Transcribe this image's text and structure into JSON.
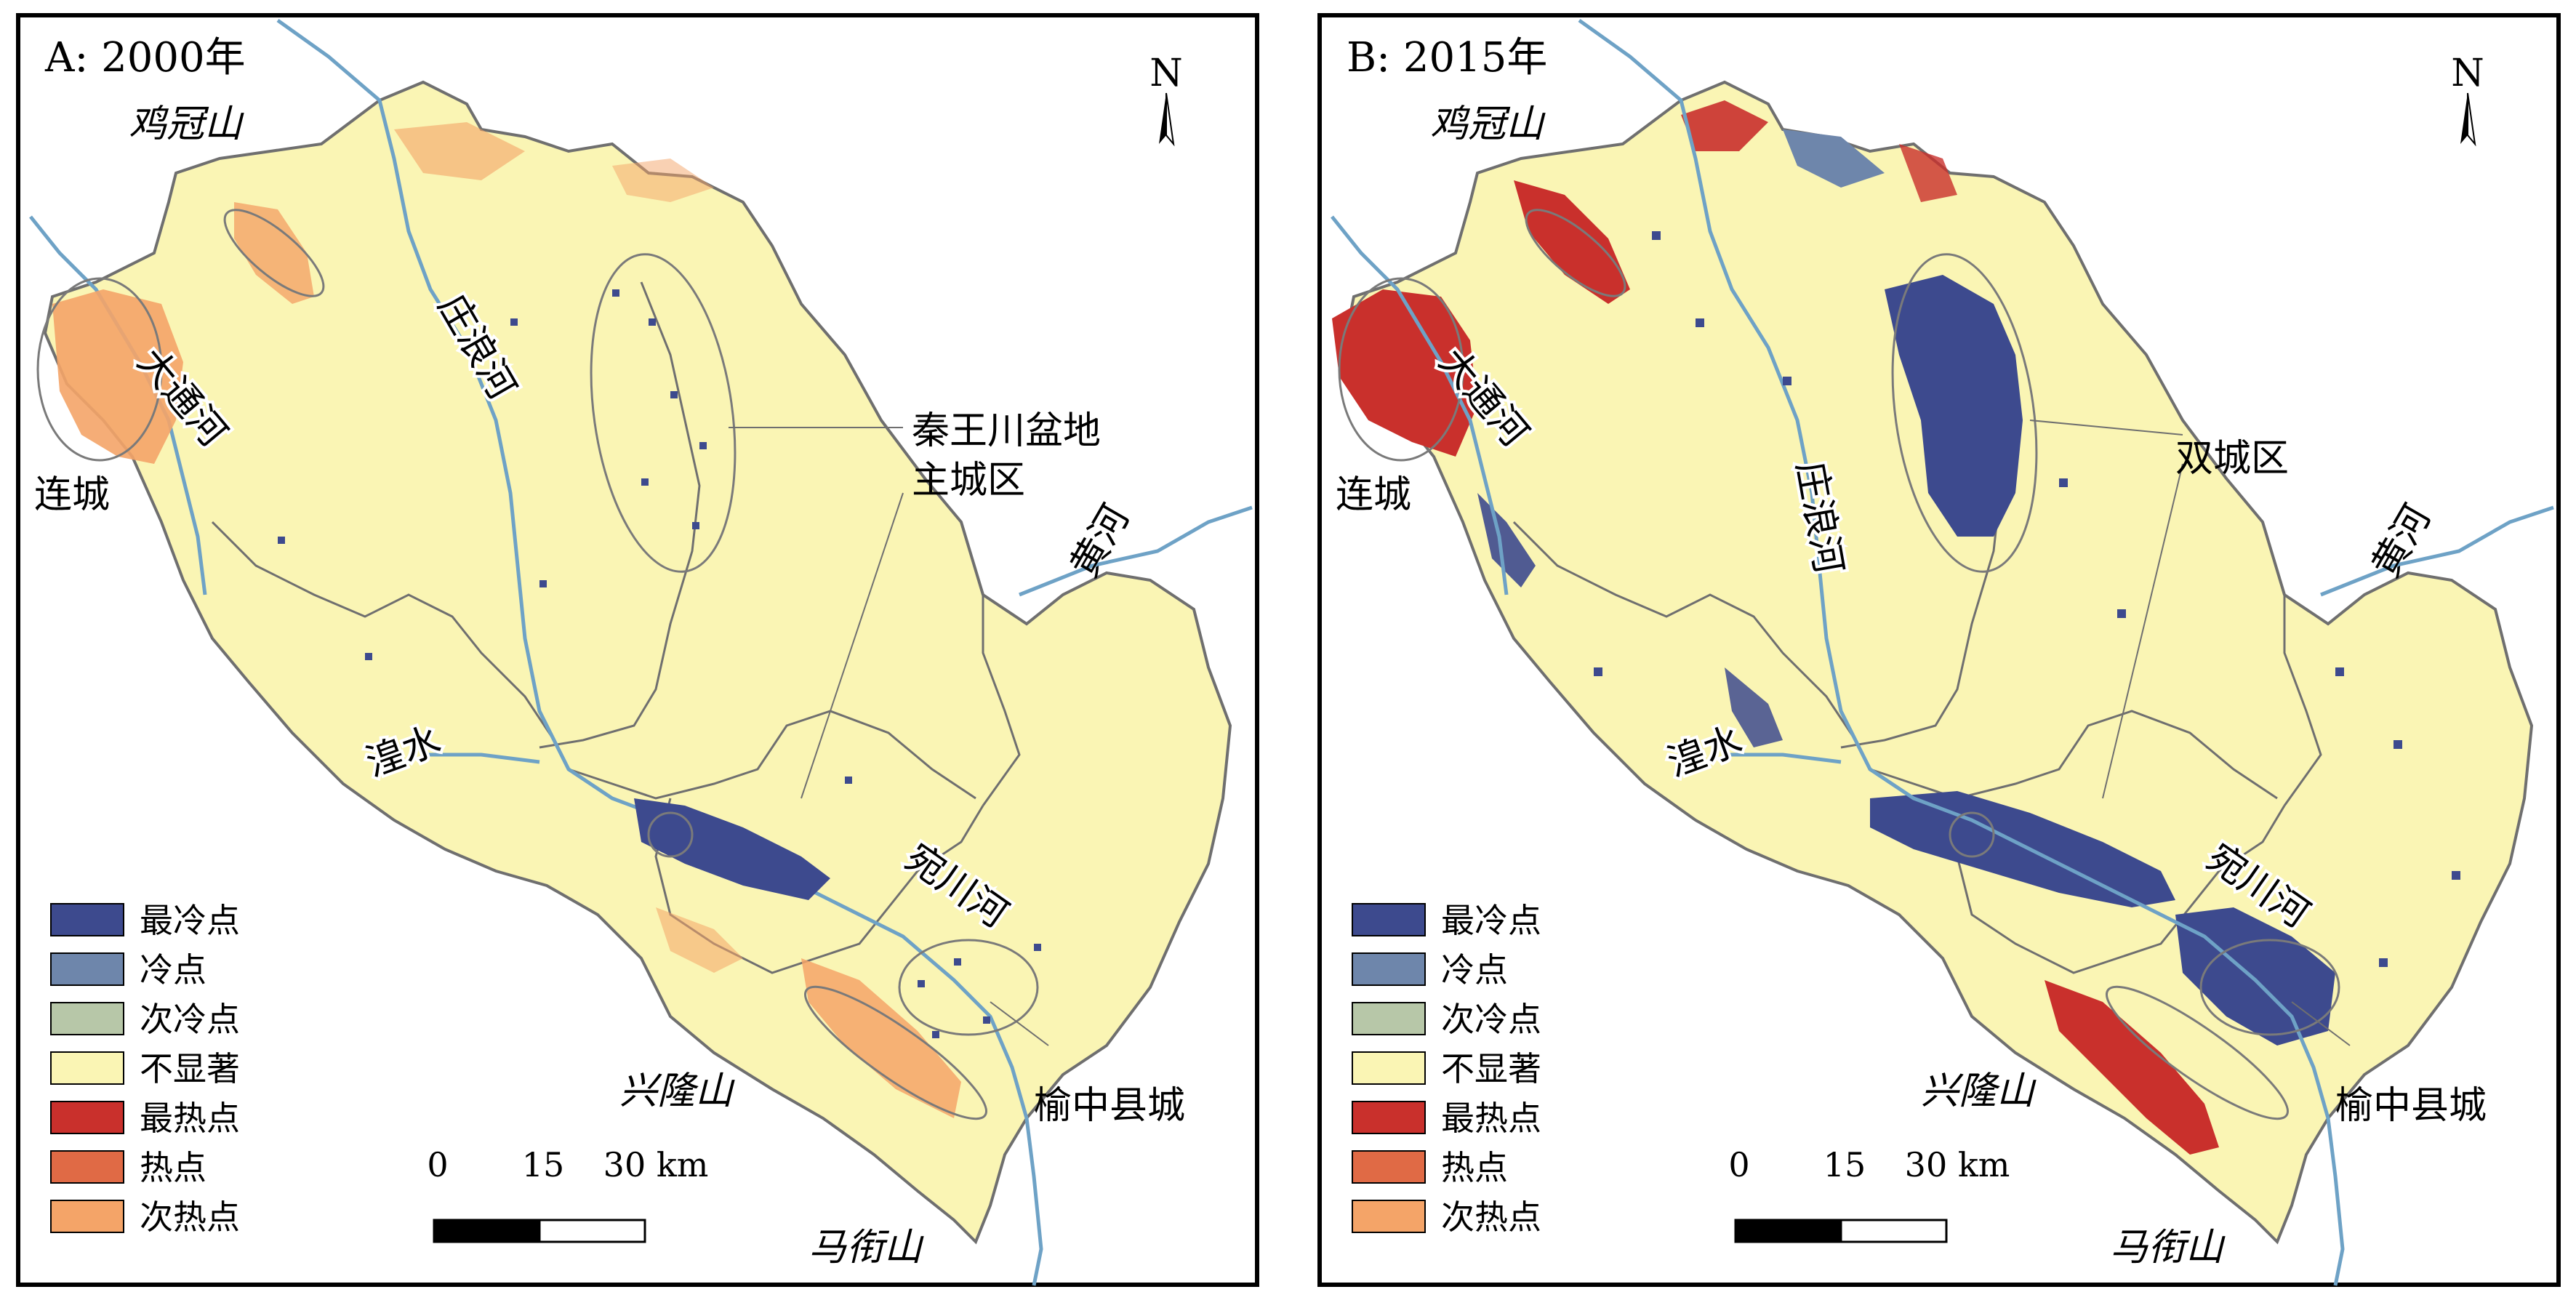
{
  "colors": {
    "coldest": "#3d4a8e",
    "cold": "#6e86ab",
    "sub_cold": "#b7c7a8",
    "not_significant": "#faf5b4",
    "hottest": "#c9302c",
    "hot": "#e06a45",
    "sub_hot": "#f4a468",
    "river": "#6ea2c6",
    "boundary": "#6f6f6f"
  },
  "legend": [
    "最冷点",
    "冷点",
    "次冷点",
    "不显著",
    "最热点",
    "热点",
    "次热点"
  ],
  "scale": {
    "ticks": [
      "0",
      "15",
      "30 km"
    ]
  },
  "north_label": "N",
  "panels": [
    {
      "title": "A: 2000年",
      "labels": {
        "jiguanshan": "鸡冠山",
        "datonghe": "大通河",
        "liancheng": "连城",
        "zhuanglanghe": "庄浪河",
        "center_callout": "秦王川盆地",
        "center_callout_2": "主城区",
        "huanghe": "黄河",
        "huangshui": "湟水",
        "wanchuanhe": "宛川河",
        "xinglongshan": "兴隆山",
        "yuzhong": "榆中县城",
        "mashanshan": "马衔山"
      }
    },
    {
      "title": "B: 2015年",
      "labels": {
        "jiguanshan": "鸡冠山",
        "datonghe": "大通河",
        "liancheng": "连城",
        "zhuanglanghe": "庄浪河",
        "center_callout": "双城区",
        "huanghe": "黄河",
        "huangshui": "湟水",
        "wanchuanhe": "宛川河",
        "xinglongshan": "兴隆山",
        "yuzhong": "榆中县城",
        "mashanshan": "马衔山"
      }
    }
  ]
}
